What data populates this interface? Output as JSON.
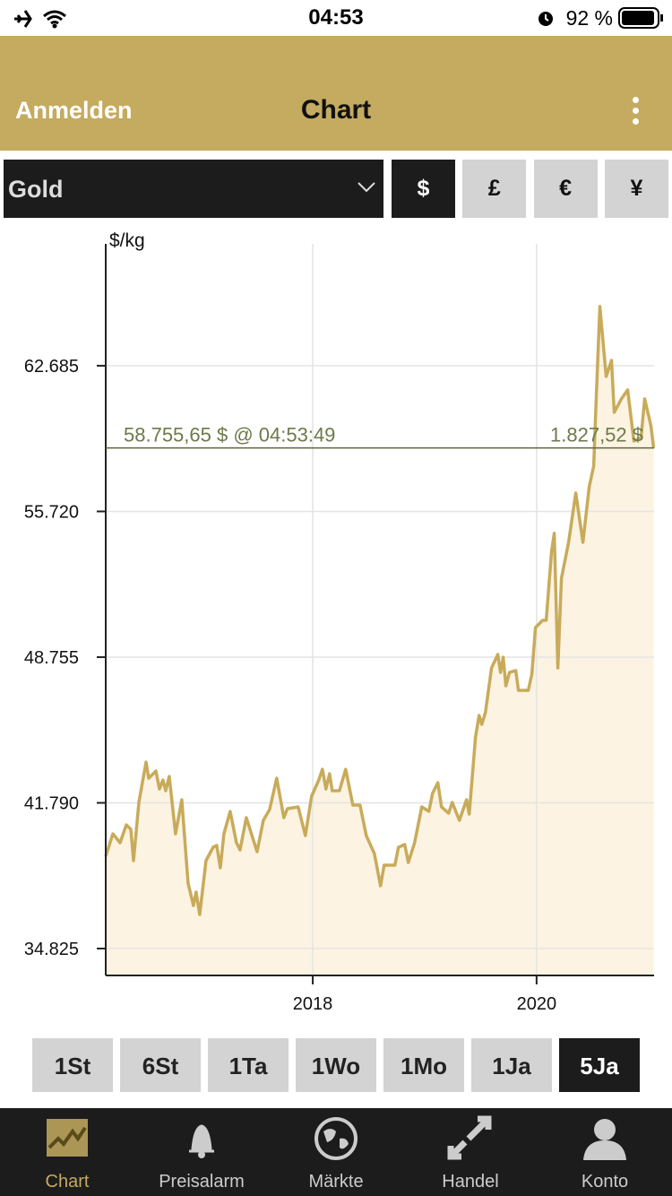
{
  "status_bar": {
    "time": "04:53",
    "battery": "92 %"
  },
  "header": {
    "left": "Anmelden",
    "title": "Chart"
  },
  "selector": {
    "metal": "Gold",
    "currencies": [
      "$",
      "£",
      "€",
      "¥"
    ],
    "active_currency": 0
  },
  "chart_data": {
    "type": "line",
    "y_label": "$/kg",
    "color": "#c8ab5a",
    "fill_color": "#fcf3e2",
    "grid": true,
    "xlim": [
      2016.15,
      2021.05
    ],
    "xticks": [
      2018,
      2020
    ],
    "ylim": [
      33540,
      68510
    ],
    "yticks": [
      {
        "value": 34825,
        "label": "34.825"
      },
      {
        "value": 41790,
        "label": "41.790"
      },
      {
        "value": 48755,
        "label": "48.755"
      },
      {
        "value": 55720,
        "label": "55.720"
      },
      {
        "value": 62685,
        "label": "62.685"
      }
    ],
    "reference_line": {
      "value": 58755.65,
      "label": "58.755,65 $ @ 04:53:49",
      "secondary_label": "1.827,52 $"
    },
    "x": [
      2016.15,
      2016.214,
      2016.278,
      2016.334,
      2016.374,
      2016.398,
      2016.446,
      2016.51,
      2016.534,
      2016.598,
      2016.63,
      2016.662,
      2016.686,
      2016.718,
      2016.774,
      2016.83,
      2016.886,
      2016.934,
      2016.958,
      2016.99,
      2017.046,
      2017.11,
      2017.142,
      2017.174,
      2017.206,
      2017.262,
      2017.318,
      2017.35,
      2017.406,
      2017.502,
      2017.558,
      2017.614,
      2017.678,
      2017.742,
      2017.774,
      2017.87,
      2017.934,
      2017.99,
      2018.054,
      2018.086,
      2018.118,
      2018.15,
      2018.174,
      2018.238,
      2018.294,
      2018.358,
      2018.422,
      2018.478,
      2018.55,
      2018.606,
      2018.638,
      2018.734,
      2018.766,
      2018.822,
      2018.854,
      2018.91,
      2018.974,
      2019.038,
      2019.07,
      2019.118,
      2019.15,
      2019.214,
      2019.246,
      2019.31,
      2019.374,
      2019.398,
      2019.454,
      2019.486,
      2019.51,
      2019.542,
      2019.598,
      2019.654,
      2019.678,
      2019.702,
      2019.726,
      2019.758,
      2019.814,
      2019.838,
      2019.894,
      2019.926,
      2019.958,
      2019.99,
      2020.054,
      2020.086,
      2020.134,
      2020.158,
      2020.19,
      2020.222,
      2020.286,
      2020.35,
      2020.414,
      2020.47,
      2020.51,
      2020.534,
      2020.566,
      2020.622,
      2020.67,
      2020.694,
      2020.758,
      2020.814,
      2020.87,
      2020.934,
      2020.966,
      2021.022,
      2021.046
    ],
    "values": [
      39241,
      40312,
      39883,
      40741,
      40526,
      39026,
      41812,
      43741,
      42969,
      43312,
      42455,
      42884,
      42369,
      43055,
      40312,
      41941,
      37955,
      36883,
      37526,
      36455,
      39026,
      39669,
      39755,
      38683,
      40312,
      41384,
      39883,
      39541,
      41084,
      39455,
      40955,
      41469,
      42969,
      41084,
      41512,
      41598,
      40226,
      42112,
      42884,
      43398,
      42455,
      43184,
      42369,
      42369,
      43398,
      41684,
      41684,
      40226,
      39369,
      37826,
      38812,
      38812,
      39669,
      39798,
      38941,
      39883,
      41598,
      41384,
      42241,
      42755,
      41598,
      41298,
      41812,
      40955,
      41941,
      41255,
      44941,
      45970,
      45541,
      46098,
      48241,
      48884,
      48027,
      48755,
      47384,
      48027,
      48113,
      47170,
      47170,
      47170,
      47941,
      50170,
      50513,
      50513,
      53813,
      54670,
      48241,
      52527,
      54242,
      56599,
      54242,
      56899,
      57885,
      61313,
      65514,
      62171,
      62942,
      60456,
      61099,
      61528,
      59085,
      59256,
      61099,
      59813,
      58756
    ]
  },
  "periods": {
    "items": [
      "1St",
      "6St",
      "1Ta",
      "1Wo",
      "1Mo",
      "1Ja",
      "5Ja"
    ],
    "active": 6
  },
  "tabs": {
    "items": [
      "Chart",
      "Preisalarm",
      "Märkte",
      "Handel",
      "Konto"
    ],
    "active": 0
  }
}
